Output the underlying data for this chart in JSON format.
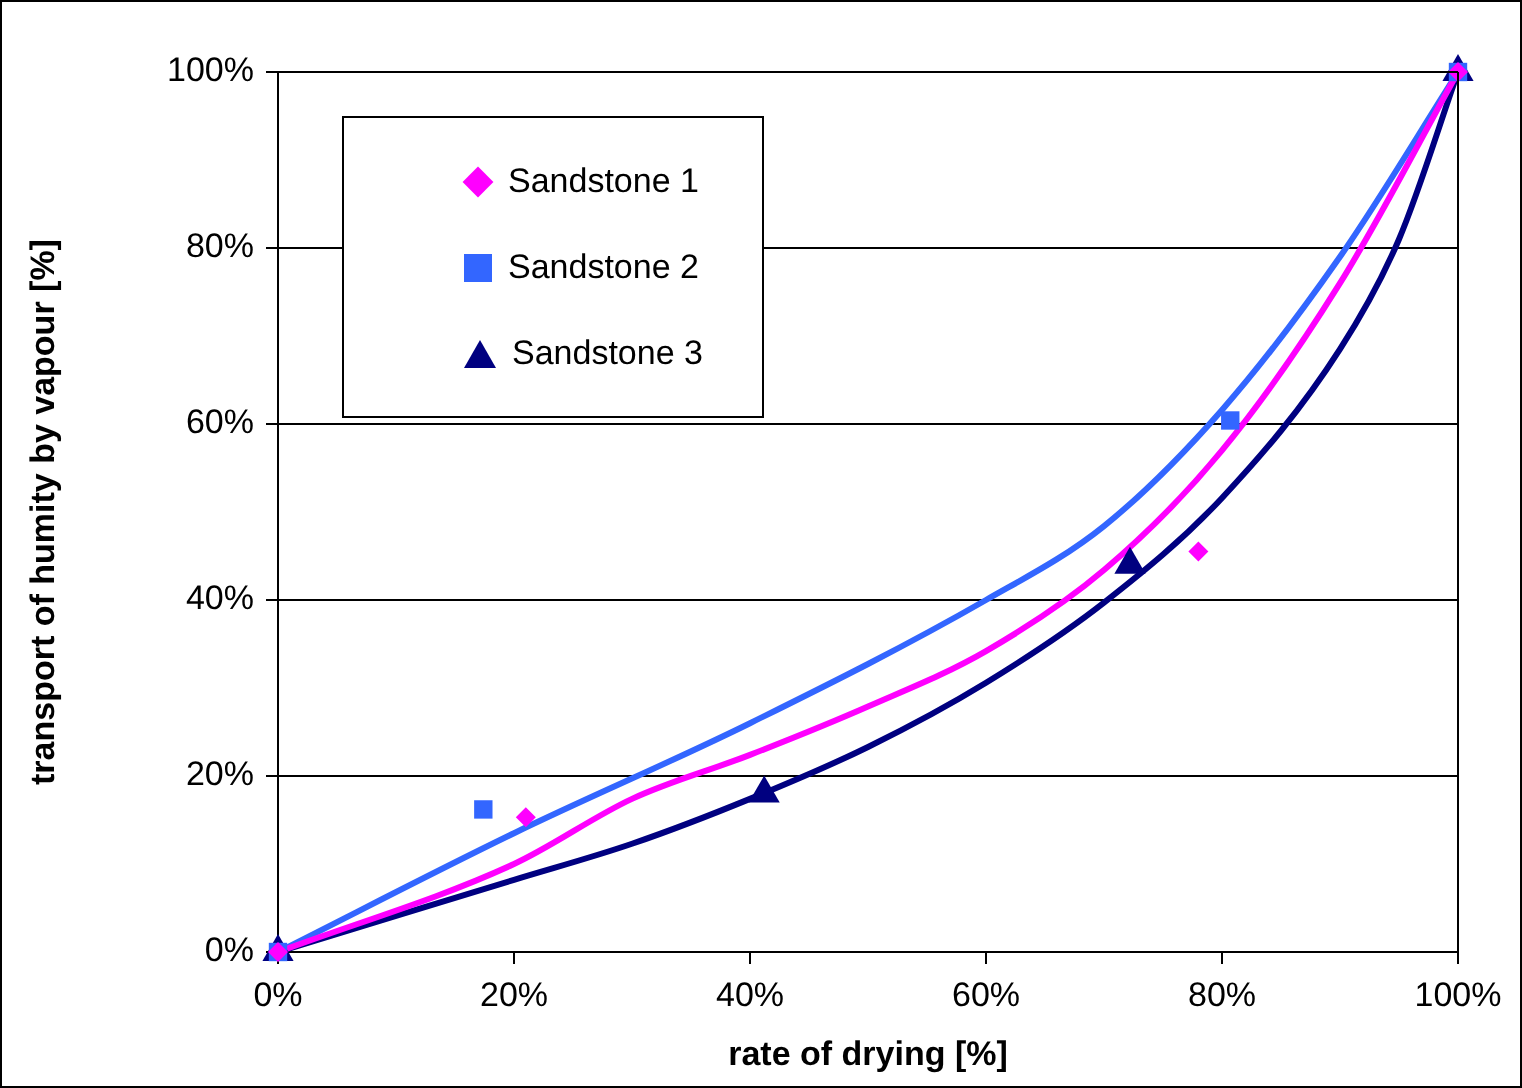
{
  "chart_data": {
    "type": "scatter",
    "xlabel": "rate of drying [%]",
    "ylabel": "transport of humity by vapour [%]",
    "xlim": [
      0,
      100
    ],
    "ylim": [
      0,
      100
    ],
    "xticks": [
      {
        "value": 0,
        "label": "0%"
      },
      {
        "value": 20,
        "label": "20%"
      },
      {
        "value": 40,
        "label": "40%"
      },
      {
        "value": 60,
        "label": "60%"
      },
      {
        "value": 80,
        "label": "80%"
      },
      {
        "value": 100,
        "label": "100%"
      }
    ],
    "yticks": [
      {
        "value": 0,
        "label": "0%"
      },
      {
        "value": 20,
        "label": "20%"
      },
      {
        "value": 40,
        "label": "40%"
      },
      {
        "value": 60,
        "label": "60%"
      },
      {
        "value": 80,
        "label": "80%"
      },
      {
        "value": 100,
        "label": "100%"
      }
    ],
    "grid": "y",
    "legend": "top left",
    "series": [
      {
        "name": "Sandstone 1",
        "marker": "diamond",
        "color": "#ff00ff",
        "x": [
          0,
          21,
          78,
          100
        ],
        "values": [
          0,
          15.3,
          45.5,
          100
        ]
      },
      {
        "name": "Sandstone 2",
        "marker": "square",
        "color": "#3366ff",
        "x": [
          0,
          17.4,
          80.7,
          100
        ],
        "values": [
          0,
          16.2,
          60.4,
          100
        ]
      },
      {
        "name": "Sandstone 3",
        "marker": "triangle",
        "color": "#000080",
        "x": [
          0,
          41.2,
          72.2,
          100
        ],
        "values": [
          0,
          18,
          44,
          100
        ]
      },
      {
        "type": "line",
        "marker": "none",
        "line_style": "solid",
        "color": "#ff00ff",
        "x": [
          0,
          20,
          30,
          40,
          50,
          60,
          70,
          80,
          90,
          100
        ],
        "values": [
          0,
          10,
          17.4,
          22.4,
          27.9,
          34.2,
          43.4,
          57,
          76,
          100
        ]
      },
      {
        "type": "line",
        "marker": "none",
        "line_style": "solid",
        "color": "#3366ff",
        "x": [
          0,
          20,
          40,
          60,
          70,
          80,
          90,
          100
        ],
        "values": [
          0,
          13.5,
          26,
          40,
          48.4,
          61.6,
          79,
          100
        ]
      },
      {
        "type": "line",
        "marker": "none",
        "line_style": "solid",
        "color": "#000080",
        "x": [
          0,
          20,
          30,
          40,
          50,
          60,
          70,
          80,
          90,
          95,
          100
        ],
        "values": [
          0,
          8.2,
          12.3,
          17.4,
          23.3,
          30.6,
          39.7,
          51.6,
          68.5,
          81,
          100
        ]
      }
    ]
  }
}
